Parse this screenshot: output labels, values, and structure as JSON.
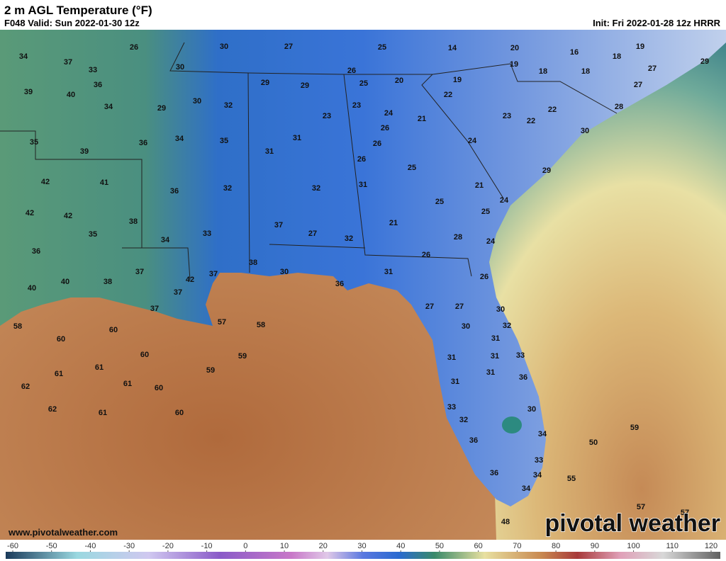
{
  "header": {
    "title": "2 m AGL Temperature (°F)",
    "valid": "F048 Valid: Sun 2022-01-30 12z",
    "init": "Init: Fri 2022-01-28 12z HRRR"
  },
  "map": {
    "labels": [
      34,
      37,
      33,
      26,
      30,
      27,
      25,
      14,
      20,
      16,
      18,
      19,
      29,
      39,
      40,
      36,
      34,
      30,
      29,
      30,
      32,
      29,
      29,
      26,
      25,
      20,
      19,
      19,
      18,
      18,
      27,
      27,
      22,
      23,
      23,
      24,
      21,
      23,
      22,
      22,
      28,
      30,
      35,
      39,
      36,
      34,
      35,
      31,
      31,
      26,
      26,
      26,
      24,
      25,
      29,
      42,
      41,
      36,
      32,
      32,
      31,
      21,
      42,
      42,
      38,
      37,
      27,
      25,
      25,
      24,
      35,
      34,
      33,
      32,
      21,
      28,
      24,
      36,
      38,
      26,
      37,
      42,
      37,
      30,
      31,
      26,
      40,
      40,
      38,
      37,
      36,
      37,
      27,
      27,
      30,
      58,
      60,
      57,
      58,
      30,
      32,
      60,
      60,
      59,
      31,
      31,
      31,
      33,
      61,
      61,
      59,
      31,
      36,
      62,
      61,
      60,
      31,
      33,
      30,
      62,
      61,
      60,
      32,
      34,
      59,
      50,
      36,
      33,
      36,
      34,
      55,
      34,
      57,
      57,
      48
    ]
  },
  "colorbar": {
    "ticks": [
      -60,
      -50,
      -40,
      -30,
      -20,
      -10,
      0,
      10,
      20,
      30,
      40,
      50,
      60,
      70,
      80,
      90,
      100,
      110,
      120
    ]
  },
  "footer": {
    "website": "www.pivotalweather.com",
    "logo": "pivotal weather"
  }
}
